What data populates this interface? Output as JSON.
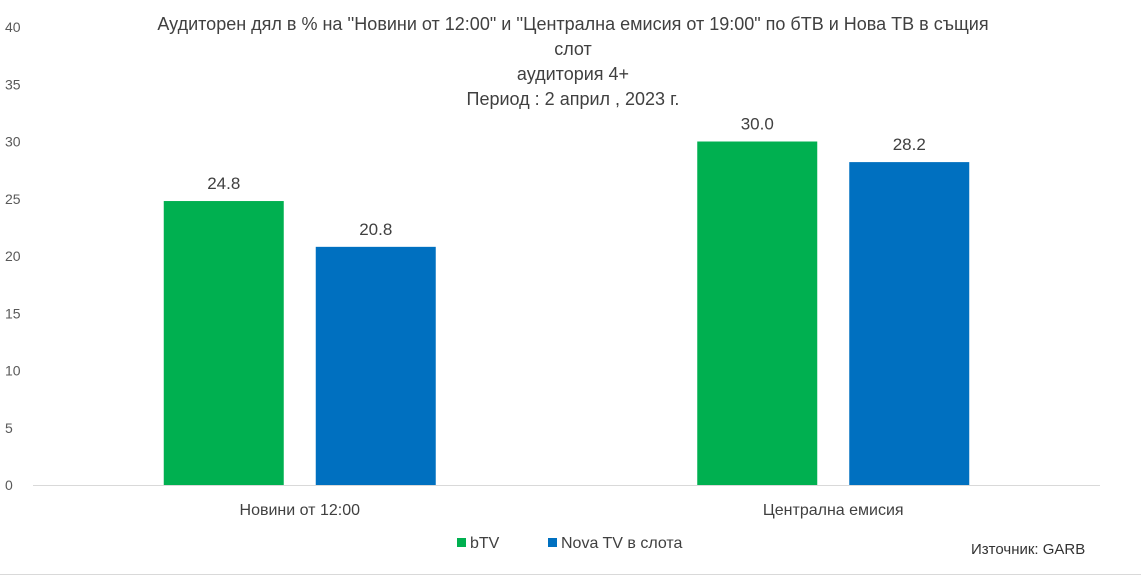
{
  "chart_data": {
    "type": "bar",
    "title_lines": [
      "Аудиторен дял в %  на ''Новини от 12:00\" и ''Централна емисия от 19:00\"  по бТВ и Нова ТВ  в същия",
      "слот",
      "аудитория 4+",
      "Период : 2 април , 2023 г."
    ],
    "categories": [
      "Новини от 12:00",
      "Централна емисия"
    ],
    "series": [
      {
        "name": "bTV",
        "values": [
          24.8,
          30.0
        ],
        "labels": [
          "24.8",
          "30.0"
        ],
        "color": "#00B050"
      },
      {
        "name": "Nova TV  в слота",
        "values": [
          20.8,
          28.2
        ],
        "labels": [
          "20.8",
          "28.2"
        ],
        "color": "#0070C0"
      }
    ],
    "ylim": [
      0,
      40
    ],
    "yticks": [
      "0",
      "5",
      "10",
      "15",
      "20",
      "25",
      "30",
      "35",
      "40"
    ],
    "grid": false,
    "legend_position": "bottom"
  },
  "source_note": "Източник: GARB"
}
